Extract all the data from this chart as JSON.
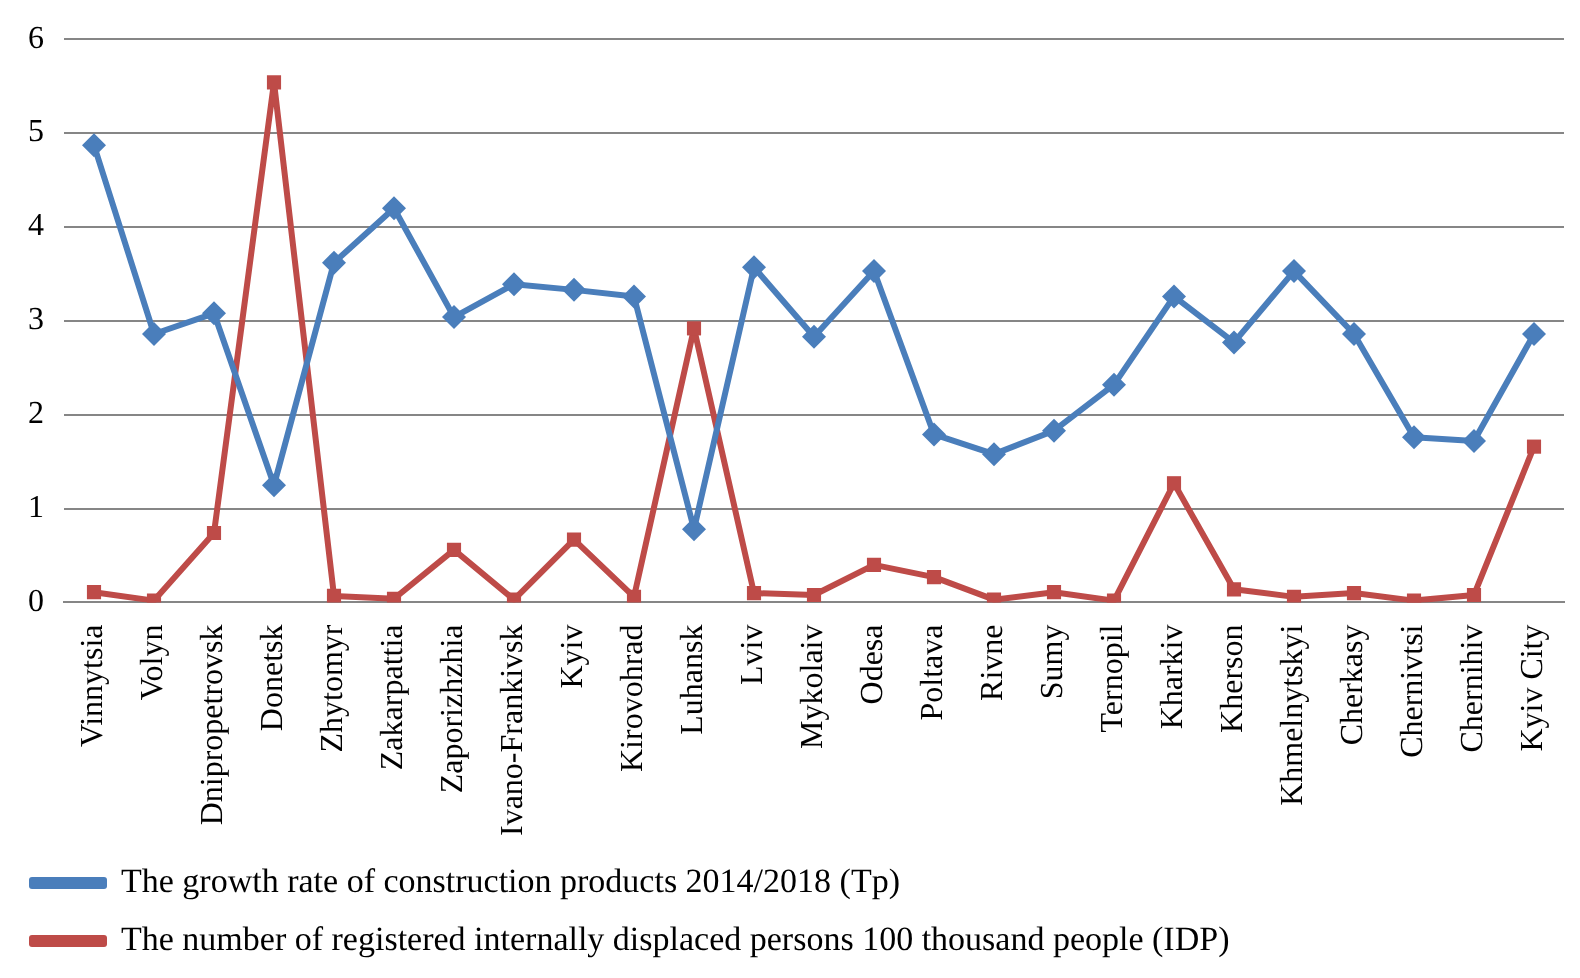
{
  "chart_data": {
    "type": "line",
    "categories": [
      "Vinnytsia",
      "Volyn",
      "Dnipropetrovsk",
      "Donetsk",
      "Zhytomyr",
      "Zakarpattia",
      "Zaporizhzhia",
      "Ivano-Frankivsk",
      "Kyiv",
      "Kirovohrad",
      "Luhansk",
      "Lviv",
      "Mykolaiv",
      "Odesa",
      "Poltava",
      "Rivne",
      "Sumy",
      "Ternopil",
      "Kharkiv",
      "Kherson",
      "Khmelnytskyi",
      "Cherkasy",
      "Chernivtsi",
      "Chernihiv",
      "Kyiv City"
    ],
    "series": [
      {
        "name": "The growth rate of construction products 2014/2018 (Tp)",
        "color": "#4a7ebb",
        "marker": "diamond",
        "values": [
          4.87,
          2.86,
          3.08,
          1.25,
          3.62,
          4.2,
          3.04,
          3.39,
          3.33,
          3.26,
          0.78,
          3.57,
          2.83,
          3.53,
          1.79,
          1.58,
          1.83,
          2.32,
          3.26,
          2.77,
          3.53,
          2.86,
          1.76,
          1.72,
          2.86
        ]
      },
      {
        "name": "The number of registered internally displaced persons 100 thousand people (IDP)",
        "color": "#be4b48",
        "marker": "square",
        "values": [
          0.11,
          0.02,
          0.74,
          5.54,
          0.07,
          0.04,
          0.56,
          0.03,
          0.67,
          0.06,
          2.92,
          0.1,
          0.08,
          0.4,
          0.27,
          0.03,
          0.11,
          0.02,
          1.27,
          0.14,
          0.06,
          0.1,
          0.02,
          0.08,
          1.66
        ]
      }
    ],
    "ylim": [
      0,
      6
    ],
    "yticks": [
      0,
      1,
      2,
      3,
      4,
      5,
      6
    ],
    "grid": "y",
    "legend": "bottom",
    "line_style": "solid"
  }
}
